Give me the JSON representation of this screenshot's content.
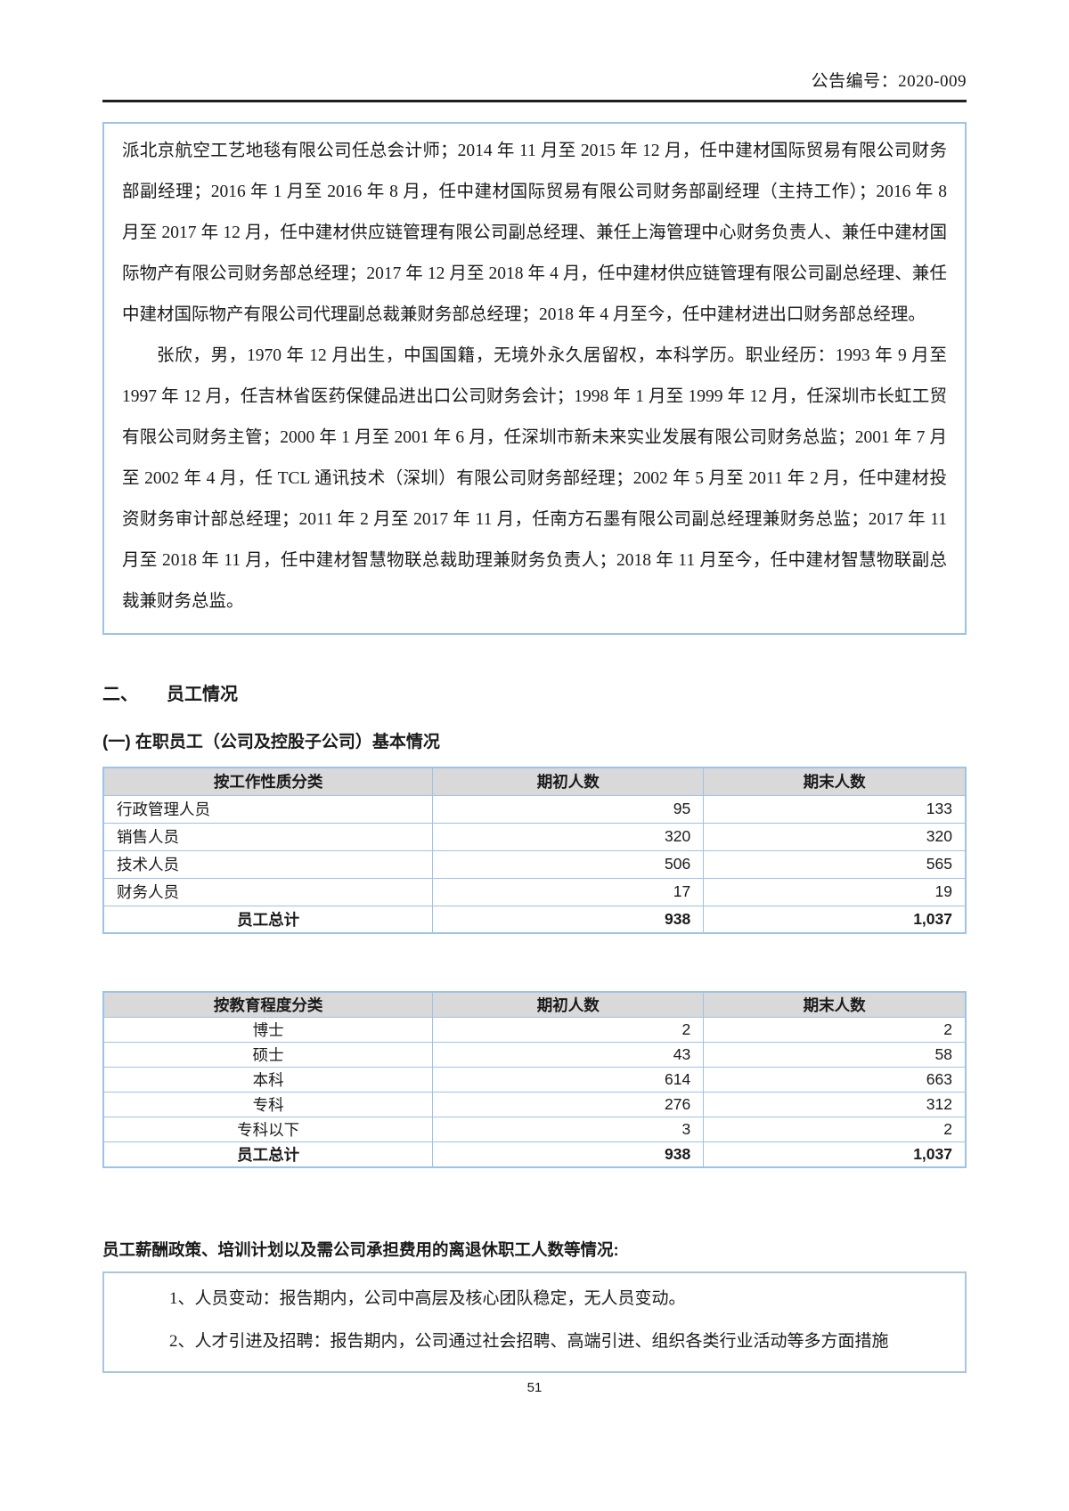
{
  "header": {
    "announcement_no": "公告编号：2020-009"
  },
  "bio_box": {
    "paragraph1": "派北京航空工艺地毯有限公司任总会计师；2014 年 11 月至 2015 年 12 月，任中建材国际贸易有限公司财务部副经理；2016 年 1 月至 2016 年 8 月，任中建材国际贸易有限公司财务部副经理（主持工作）；2016 年 8 月至 2017 年 12 月，任中建材供应链管理有限公司副总经理、兼任上海管理中心财务负责人、兼任中建材国际物产有限公司财务部总经理；2017 年 12 月至 2018 年 4 月，任中建材供应链管理有限公司副总经理、兼任中建材国际物产有限公司代理副总裁兼财务部总经理；2018 年 4 月至今，任中建材进出口财务部总经理。",
    "paragraph2": "张欣，男，1970 年 12 月出生，中国国籍，无境外永久居留权，本科学历。职业经历：1993 年 9 月至 1997 年 12 月，任吉林省医药保健品进出口公司财务会计；1998 年 1 月至 1999 年 12 月，任深圳市长虹工贸有限公司财务主管；2000 年 1 月至 2001 年 6 月，任深圳市新未来实业发展有限公司财务总监；2001 年 7 月至 2002 年 4 月，任 TCL 通讯技术（深圳）有限公司财务部经理；2002 年 5 月至 2011 年 2 月，任中建材投资财务审计部总经理；2011 年 2 月至 2017 年 11 月，任南方石墨有限公司副总经理兼财务总监；2017 年 11 月至 2018 年 11 月，任中建材智慧物联总裁助理兼财务负责人；2018 年 11 月至今，任中建材智慧物联副总裁兼财务总监。"
  },
  "section": {
    "number": "二、",
    "title": "员工情况"
  },
  "subsection_title": "(一) 在职员工（公司及控股子公司）基本情况",
  "table_by_job": {
    "headers": [
      "按工作性质分类",
      "期初人数",
      "期末人数"
    ],
    "rows": [
      [
        "行政管理人员",
        "95",
        "133"
      ],
      [
        "销售人员",
        "320",
        "320"
      ],
      [
        "技术人员",
        "506",
        "565"
      ],
      [
        "财务人员",
        "17",
        "19"
      ]
    ],
    "total": [
      "员工总计",
      "938",
      "1,037"
    ]
  },
  "table_by_education": {
    "headers": [
      "按教育程度分类",
      "期初人数",
      "期末人数"
    ],
    "rows": [
      [
        "博士",
        "2",
        "2"
      ],
      [
        "硕士",
        "43",
        "58"
      ],
      [
        "本科",
        "614",
        "663"
      ],
      [
        "专科",
        "276",
        "312"
      ],
      [
        "专科以下",
        "3",
        "2"
      ]
    ],
    "total": [
      "员工总计",
      "938",
      "1,037"
    ]
  },
  "policy": {
    "heading": "员工薪酬政策、培训计划以及需公司承担费用的离退休职工人数等情况:",
    "item1": "1、人员变动：报告期内，公司中高层及核心团队稳定，无人员变动。",
    "item2": "2、人才引进及招聘：报告期内，公司通过社会招聘、高端引进、组织各类行业活动等多方面措施"
  },
  "footer": {
    "page_number": "51"
  },
  "colors": {
    "table_border": "#9dc3e6",
    "header_row_bg": "#d9d9d9",
    "rule": "#1f1f1f"
  }
}
